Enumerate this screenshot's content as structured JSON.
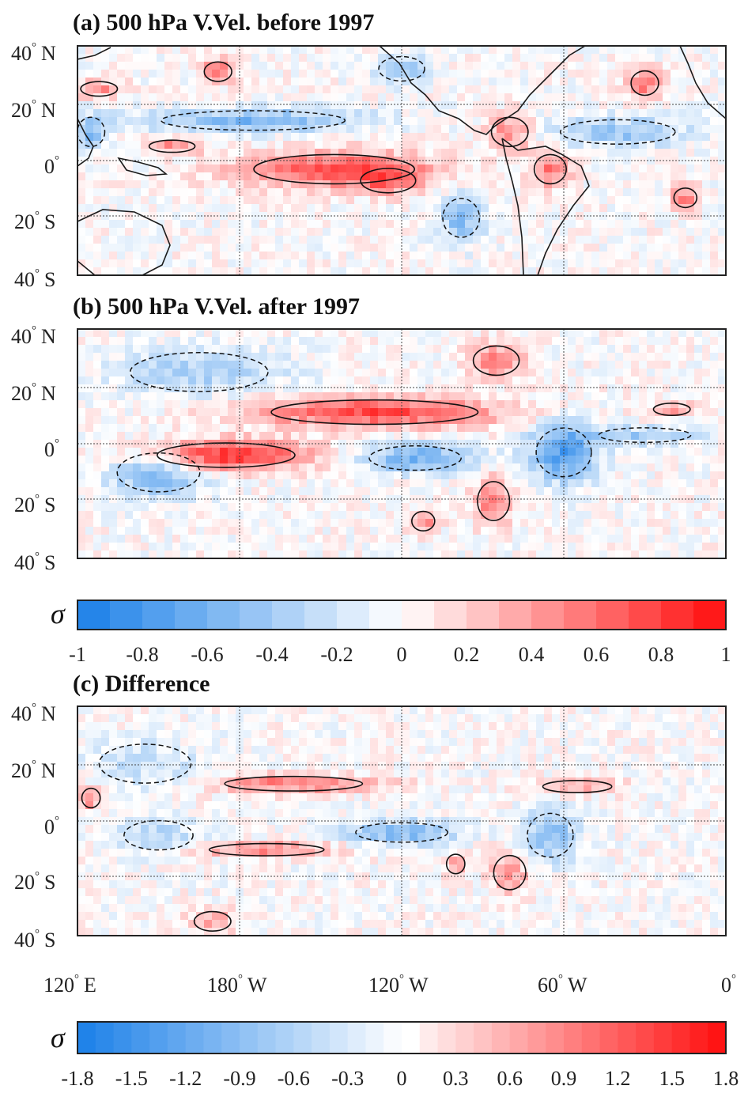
{
  "figure": {
    "panels": [
      {
        "id": "a",
        "title": "(a) 500 hPa V.Vel. before 1997",
        "lat_labels": [
          {
            "num": "40",
            "hemi": "N"
          },
          {
            "num": "20",
            "hemi": "N"
          },
          {
            "num": "0",
            "hemi": ""
          },
          {
            "num": "20",
            "hemi": "S"
          },
          {
            "num": "40",
            "hemi": "S"
          }
        ]
      },
      {
        "id": "b",
        "title": "(b)  500 hPa V.Vel. after 1997",
        "lat_labels": [
          {
            "num": "40",
            "hemi": "N"
          },
          {
            "num": "20",
            "hemi": "N"
          },
          {
            "num": "0",
            "hemi": ""
          },
          {
            "num": "20",
            "hemi": "S"
          },
          {
            "num": "40",
            "hemi": "S"
          }
        ]
      },
      {
        "id": "c",
        "title": "(c) Difference",
        "lat_labels": [
          {
            "num": "40",
            "hemi": "N"
          },
          {
            "num": "20",
            "hemi": "N"
          },
          {
            "num": "0",
            "hemi": ""
          },
          {
            "num": "20",
            "hemi": "S"
          },
          {
            "num": "40",
            "hemi": "S"
          }
        ]
      }
    ],
    "lon_labels": [
      {
        "num": "120",
        "hemi": "E"
      },
      {
        "num": "180",
        "hemi": "W"
      },
      {
        "num": "120",
        "hemi": "W"
      },
      {
        "num": "60",
        "hemi": "W"
      },
      {
        "num": "0",
        "hemi": ""
      }
    ],
    "colorbars": [
      {
        "symbol": "σ",
        "ticks": [
          "-1",
          "-0.8",
          "-0.6",
          "-0.4",
          "-0.2",
          "0",
          "0.2",
          "0.4",
          "0.6",
          "0.8",
          "1"
        ],
        "levels": 20
      },
      {
        "symbol": "σ",
        "ticks": [
          "-1.8",
          "-1.5",
          "-1.2",
          "-0.9",
          "-0.6",
          "-0.3",
          "0",
          "0.3",
          "0.6",
          "0.9",
          "1.2",
          "1.5",
          "1.8"
        ],
        "levels": 36
      }
    ],
    "colors": {
      "negative_end": "#1a7fe8",
      "neutral": "#ffffff",
      "positive_end": "#ff0d0d",
      "contour": "#111111"
    }
  },
  "chart_data": [
    {
      "type": "heatmap",
      "title": "(a) 500 hPa V.Vel. before 1997",
      "x_range_deg_lon": [
        120,
        360
      ],
      "x_ticks": [
        "120° E",
        "180° W",
        "120° W",
        "60° W",
        "0°"
      ],
      "y_range_deg_lat": [
        -40,
        40
      ],
      "y_ticks": [
        "40° N",
        "20° N",
        "0°",
        "20° S",
        "40° S"
      ],
      "value_range": [
        -1,
        1
      ],
      "units": "σ",
      "features": [
        {
          "sign": "positive",
          "lon_center": 215,
          "lat_center": -3,
          "lon_halfwidth": 35,
          "lat_halfwidth": 6,
          "amp": 0.7
        },
        {
          "sign": "positive",
          "lon_center": 235,
          "lat_center": -7,
          "lon_halfwidth": 12,
          "lat_halfwidth": 5,
          "amp": 0.4
        },
        {
          "sign": "positive",
          "lon_center": 172,
          "lat_center": 31,
          "lon_halfwidth": 6,
          "lat_halfwidth": 4,
          "amp": 0.6
        },
        {
          "sign": "positive",
          "lon_center": 128,
          "lat_center": 25,
          "lon_halfwidth": 8,
          "lat_halfwidth": 3,
          "amp": 0.5
        },
        {
          "sign": "positive",
          "lon_center": 155,
          "lat_center": 5,
          "lon_halfwidth": 10,
          "lat_halfwidth": 2.5,
          "amp": 0.5
        },
        {
          "sign": "positive",
          "lon_center": 280,
          "lat_center": 10,
          "lon_halfwidth": 8,
          "lat_halfwidth": 6,
          "amp": 0.5
        },
        {
          "sign": "positive",
          "lon_center": 295,
          "lat_center": -3,
          "lon_halfwidth": 7,
          "lat_halfwidth": 6,
          "amp": 0.55
        },
        {
          "sign": "positive",
          "lon_center": 330,
          "lat_center": 27,
          "lon_halfwidth": 6,
          "lat_halfwidth": 5,
          "amp": 0.6
        },
        {
          "sign": "positive",
          "lon_center": 345,
          "lat_center": -13,
          "lon_halfwidth": 5,
          "lat_halfwidth": 4,
          "amp": 0.55
        },
        {
          "sign": "negative",
          "lon_center": 185,
          "lat_center": 14,
          "lon_halfwidth": 40,
          "lat_halfwidth": 4,
          "amp": 0.55
        },
        {
          "sign": "negative",
          "lon_center": 125,
          "lat_center": 10,
          "lon_halfwidth": 6,
          "lat_halfwidth": 6,
          "amp": 0.5
        },
        {
          "sign": "negative",
          "lon_center": 320,
          "lat_center": 10,
          "lon_halfwidth": 25,
          "lat_halfwidth": 5,
          "amp": 0.45
        },
        {
          "sign": "negative",
          "lon_center": 262,
          "lat_center": -20,
          "lon_halfwidth": 8,
          "lat_halfwidth": 8,
          "amp": 0.5
        },
        {
          "sign": "negative",
          "lon_center": 240,
          "lat_center": 32,
          "lon_halfwidth": 10,
          "lat_halfwidth": 5,
          "amp": 0.4
        }
      ]
    },
    {
      "type": "heatmap",
      "title": "(b)  500 hPa V.Vel. after 1997",
      "x_range_deg_lon": [
        120,
        360
      ],
      "x_ticks": [
        "120° E",
        "180° W",
        "120° W",
        "60° W",
        "0°"
      ],
      "y_range_deg_lat": [
        -40,
        40
      ],
      "y_ticks": [
        "40° N",
        "20° N",
        "0°",
        "20° S",
        "40° S"
      ],
      "value_range": [
        -1,
        1
      ],
      "units": "σ",
      "features": [
        {
          "sign": "positive",
          "lon_center": 175,
          "lat_center": -4,
          "lon_halfwidth": 30,
          "lat_halfwidth": 5,
          "amp": 0.9
        },
        {
          "sign": "positive",
          "lon_center": 230,
          "lat_center": 11,
          "lon_halfwidth": 45,
          "lat_halfwidth": 5,
          "amp": 0.75
        },
        {
          "sign": "positive",
          "lon_center": 275,
          "lat_center": 29,
          "lon_halfwidth": 10,
          "lat_halfwidth": 6,
          "amp": 0.5
        },
        {
          "sign": "positive",
          "lon_center": 274,
          "lat_center": -20,
          "lon_halfwidth": 7,
          "lat_halfwidth": 8,
          "amp": 0.55
        },
        {
          "sign": "positive",
          "lon_center": 248,
          "lat_center": -27,
          "lon_halfwidth": 5,
          "lat_halfwidth": 4,
          "amp": 0.5
        },
        {
          "sign": "positive",
          "lon_center": 340,
          "lat_center": 12,
          "lon_halfwidth": 8,
          "lat_halfwidth": 2.5,
          "amp": 0.45
        },
        {
          "sign": "negative",
          "lon_center": 245,
          "lat_center": -5,
          "lon_halfwidth": 20,
          "lat_halfwidth": 5,
          "amp": 0.6
        },
        {
          "sign": "negative",
          "lon_center": 300,
          "lat_center": -3,
          "lon_halfwidth": 12,
          "lat_halfwidth": 10,
          "amp": 0.75
        },
        {
          "sign": "negative",
          "lon_center": 150,
          "lat_center": -10,
          "lon_halfwidth": 18,
          "lat_halfwidth": 8,
          "amp": 0.55
        },
        {
          "sign": "negative",
          "lon_center": 165,
          "lat_center": 25,
          "lon_halfwidth": 30,
          "lat_halfwidth": 8,
          "amp": 0.35
        },
        {
          "sign": "negative",
          "lon_center": 330,
          "lat_center": 3,
          "lon_halfwidth": 20,
          "lat_halfwidth": 3,
          "amp": 0.4
        }
      ]
    },
    {
      "type": "heatmap",
      "title": "(c) Difference",
      "x_range_deg_lon": [
        120,
        360
      ],
      "x_ticks": [
        "120° E",
        "180° W",
        "120° W",
        "60° W",
        "0°"
      ],
      "y_range_deg_lat": [
        -40,
        40
      ],
      "y_ticks": [
        "40° N",
        "20° N",
        "0°",
        "20° S",
        "40° S"
      ],
      "value_range": [
        -1.8,
        1.8
      ],
      "units": "σ",
      "features": [
        {
          "sign": "positive",
          "lon_center": 200,
          "lat_center": 13,
          "lon_halfwidth": 30,
          "lat_halfwidth": 3,
          "amp": 1.0
        },
        {
          "sign": "positive",
          "lon_center": 190,
          "lat_center": -10,
          "lon_halfwidth": 25,
          "lat_halfwidth": 2.5,
          "amp": 0.95
        },
        {
          "sign": "positive",
          "lon_center": 125,
          "lat_center": 8,
          "lon_halfwidth": 4,
          "lat_halfwidth": 4,
          "amp": 0.9
        },
        {
          "sign": "positive",
          "lon_center": 280,
          "lat_center": -18,
          "lon_halfwidth": 7,
          "lat_halfwidth": 7,
          "amp": 0.8
        },
        {
          "sign": "positive",
          "lon_center": 260,
          "lat_center": -15,
          "lon_halfwidth": 4,
          "lat_halfwidth": 4,
          "amp": 0.6
        },
        {
          "sign": "positive",
          "lon_center": 305,
          "lat_center": 12,
          "lon_halfwidth": 15,
          "lat_halfwidth": 2.5,
          "amp": 0.7
        },
        {
          "sign": "positive",
          "lon_center": 170,
          "lat_center": -35,
          "lon_halfwidth": 8,
          "lat_halfwidth": 4,
          "amp": 0.7
        },
        {
          "sign": "negative",
          "lon_center": 240,
          "lat_center": -4,
          "lon_halfwidth": 20,
          "lat_halfwidth": 4,
          "amp": 1.0
        },
        {
          "sign": "negative",
          "lon_center": 295,
          "lat_center": -5,
          "lon_halfwidth": 10,
          "lat_halfwidth": 9,
          "amp": 0.9
        },
        {
          "sign": "negative",
          "lon_center": 150,
          "lat_center": -5,
          "lon_halfwidth": 15,
          "lat_halfwidth": 6,
          "amp": 0.55
        },
        {
          "sign": "negative",
          "lon_center": 145,
          "lat_center": 20,
          "lon_halfwidth": 20,
          "lat_halfwidth": 8,
          "amp": 0.45
        }
      ]
    }
  ]
}
